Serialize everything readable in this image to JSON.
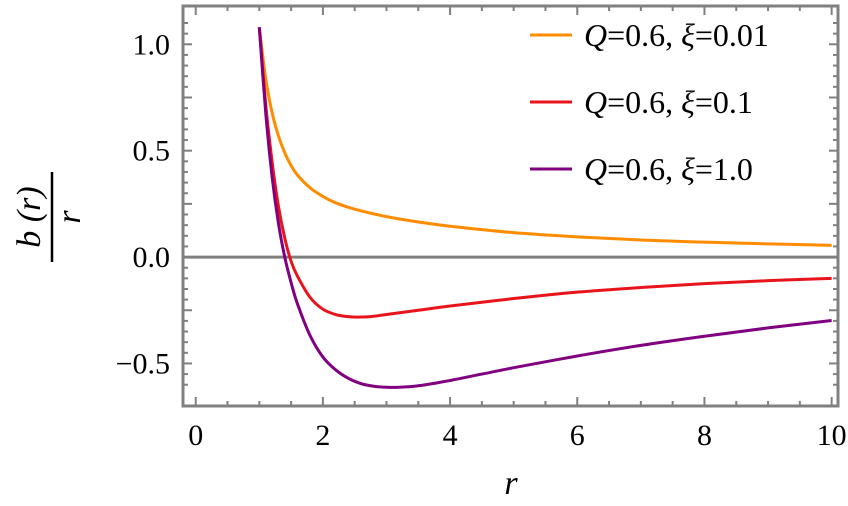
{
  "chart_data": {
    "type": "line",
    "xlabel": "r",
    "ylabel_num": "b (r)",
    "ylabel_den": "r",
    "xlim": [
      -0.2,
      10.1
    ],
    "ylim": [
      -0.7,
      1.18
    ],
    "x_ticks": [
      0,
      2,
      4,
      6,
      8,
      10
    ],
    "x_tick_labels": [
      "0",
      "2",
      "4",
      "6",
      "8",
      "10"
    ],
    "y_ticks": [
      -0.5,
      0.0,
      0.5,
      1.0
    ],
    "y_tick_labels": [
      "−0.5",
      "0.0",
      "0.5",
      "1.0"
    ],
    "reference_line_y": 0,
    "legend_position": "top-right",
    "series": [
      {
        "name": "Q=0.6, ξ=0.01",
        "legend_q": "Q",
        "legend_q_val": "=0.6, ",
        "legend_xi": "ξ",
        "legend_xi_val": "=0.01",
        "color": "#ff8c00",
        "x": [
          1.0,
          1.1,
          1.2,
          1.3,
          1.4,
          1.5,
          1.6,
          1.8,
          2.0,
          2.2,
          2.5,
          3.0,
          3.5,
          4.0,
          5.0,
          6.0,
          7.0,
          8.0,
          9.0,
          10.0
        ],
        "y": [
          1.08,
          0.84,
          0.68,
          0.57,
          0.49,
          0.43,
          0.385,
          0.325,
          0.285,
          0.255,
          0.225,
          0.19,
          0.165,
          0.145,
          0.115,
          0.095,
          0.08,
          0.07,
          0.062,
          0.055
        ]
      },
      {
        "name": "Q=0.6, ξ=0.1",
        "legend_q": "Q",
        "legend_q_val": "=0.6, ",
        "legend_xi": "ξ",
        "legend_xi_val": "=0.1",
        "color": "#e8141c",
        "x": [
          1.0,
          1.1,
          1.2,
          1.3,
          1.4,
          1.5,
          1.6,
          1.8,
          2.0,
          2.2,
          2.4,
          2.6,
          2.8,
          3.0,
          3.5,
          4.0,
          5.0,
          6.0,
          7.0,
          8.0,
          9.0,
          10.0
        ],
        "y": [
          1.08,
          0.72,
          0.45,
          0.24,
          0.09,
          -0.02,
          -0.09,
          -0.19,
          -0.245,
          -0.27,
          -0.28,
          -0.282,
          -0.278,
          -0.27,
          -0.25,
          -0.23,
          -0.195,
          -0.165,
          -0.143,
          -0.125,
          -0.111,
          -0.1
        ]
      },
      {
        "name": "Q=0.6, ξ=1.0",
        "legend_q": "Q",
        "legend_q_val": "=0.6, ",
        "legend_xi": "ξ",
        "legend_xi_val": "=1.0",
        "color": "#800080",
        "x": [
          1.0,
          1.1,
          1.2,
          1.3,
          1.4,
          1.5,
          1.6,
          1.8,
          2.0,
          2.2,
          2.4,
          2.6,
          2.8,
          3.0,
          3.2,
          3.5,
          4.0,
          4.5,
          5.0,
          6.0,
          7.0,
          8.0,
          9.0,
          10.0
        ],
        "y": [
          1.08,
          0.68,
          0.38,
          0.16,
          0.0,
          -0.12,
          -0.22,
          -0.37,
          -0.47,
          -0.53,
          -0.57,
          -0.595,
          -0.607,
          -0.612,
          -0.612,
          -0.605,
          -0.58,
          -0.55,
          -0.52,
          -0.465,
          -0.415,
          -0.372,
          -0.333,
          -0.298
        ]
      }
    ]
  }
}
